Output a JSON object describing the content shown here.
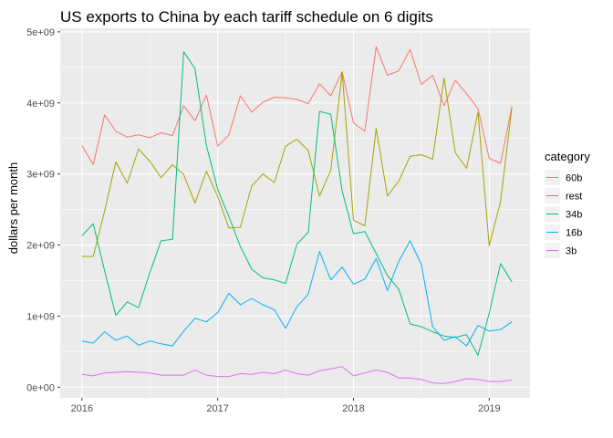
{
  "chart_data": {
    "type": "line",
    "title": "US exports to China by each tariff schedule on 6 digits",
    "xlabel": "",
    "ylabel": "dollars per month",
    "legend_title": "category",
    "legend_position": "right",
    "grid": true,
    "x_unit": "year",
    "xlim": [
      2015.84,
      2019.3
    ],
    "ylim": [
      -150000000,
      5050000000
    ],
    "x_ticks": [
      2016,
      2017,
      2018,
      2019
    ],
    "x_tick_labels": [
      "2016",
      "2017",
      "2018",
      "2019"
    ],
    "y_ticks": [
      0,
      1000000000,
      2000000000,
      3000000000,
      4000000000,
      5000000000
    ],
    "y_tick_labels": [
      "0e+00",
      "1e+09",
      "2e+09",
      "3e+09",
      "4e+09",
      "5e+09"
    ],
    "x": [
      2016.0,
      2016.083,
      2016.167,
      2016.25,
      2016.333,
      2016.417,
      2016.5,
      2016.583,
      2016.667,
      2016.75,
      2016.833,
      2016.917,
      2017.0,
      2017.083,
      2017.167,
      2017.25,
      2017.333,
      2017.417,
      2017.5,
      2017.583,
      2017.667,
      2017.75,
      2017.833,
      2017.917,
      2018.0,
      2018.083,
      2018.167,
      2018.25,
      2018.333,
      2018.417,
      2018.5,
      2018.583,
      2018.667,
      2018.75,
      2018.833,
      2018.917,
      2019.0,
      2019.083,
      2019.167
    ],
    "series": [
      {
        "name": "60b",
        "color": "#F8766D",
        "values": [
          3400000000,
          3130000000,
          3830000000,
          3600000000,
          3520000000,
          3550000000,
          3510000000,
          3580000000,
          3540000000,
          3960000000,
          3750000000,
          4110000000,
          3390000000,
          3550000000,
          4100000000,
          3870000000,
          4010000000,
          4080000000,
          4070000000,
          4050000000,
          3990000000,
          4270000000,
          4100000000,
          4440000000,
          3720000000,
          3600000000,
          4790000000,
          4390000000,
          4450000000,
          4750000000,
          4260000000,
          4390000000,
          3960000000,
          4320000000,
          4130000000,
          3920000000,
          3220000000,
          3150000000,
          3950000000
        ]
      },
      {
        "name": "rest",
        "color": "#A3A500",
        "values": [
          1840000000,
          1840000000,
          2480000000,
          3170000000,
          2870000000,
          3350000000,
          3180000000,
          2950000000,
          3130000000,
          2990000000,
          2590000000,
          3040000000,
          2680000000,
          2240000000,
          2250000000,
          2830000000,
          3000000000,
          2880000000,
          3390000000,
          3490000000,
          3330000000,
          2690000000,
          3050000000,
          4430000000,
          2350000000,
          2270000000,
          3640000000,
          2690000000,
          2900000000,
          3250000000,
          3270000000,
          3210000000,
          4350000000,
          3300000000,
          3080000000,
          3870000000,
          1990000000,
          2610000000,
          3940000000
        ]
      },
      {
        "name": "34b",
        "color": "#00BF7D",
        "values": [
          2130000000,
          2300000000,
          1640000000,
          1010000000,
          1200000000,
          1120000000,
          1610000000,
          2060000000,
          2080000000,
          4720000000,
          4480000000,
          3400000000,
          2780000000,
          2400000000,
          1980000000,
          1660000000,
          1540000000,
          1510000000,
          1460000000,
          2010000000,
          2180000000,
          3880000000,
          3840000000,
          2760000000,
          2160000000,
          2190000000,
          1880000000,
          1570000000,
          1380000000,
          890000000,
          850000000,
          780000000,
          720000000,
          700000000,
          740000000,
          450000000,
          1040000000,
          1740000000,
          1480000000
        ]
      },
      {
        "name": "16b",
        "color": "#00B0F6",
        "values": [
          650000000,
          620000000,
          780000000,
          660000000,
          720000000,
          590000000,
          650000000,
          610000000,
          580000000,
          790000000,
          970000000,
          920000000,
          1050000000,
          1320000000,
          1160000000,
          1250000000,
          1160000000,
          1090000000,
          830000000,
          1130000000,
          1310000000,
          1910000000,
          1510000000,
          1690000000,
          1450000000,
          1520000000,
          1810000000,
          1360000000,
          1770000000,
          2060000000,
          1730000000,
          850000000,
          660000000,
          710000000,
          580000000,
          870000000,
          790000000,
          810000000,
          920000000
        ]
      },
      {
        "name": "3b",
        "color": "#E76BF3",
        "values": [
          180000000,
          160000000,
          200000000,
          210000000,
          220000000,
          210000000,
          200000000,
          170000000,
          170000000,
          170000000,
          240000000,
          170000000,
          150000000,
          150000000,
          190000000,
          180000000,
          210000000,
          190000000,
          240000000,
          190000000,
          170000000,
          230000000,
          260000000,
          290000000,
          160000000,
          200000000,
          240000000,
          210000000,
          130000000,
          130000000,
          110000000,
          60000000,
          50000000,
          80000000,
          120000000,
          110000000,
          80000000,
          80000000,
          100000000
        ]
      }
    ]
  }
}
